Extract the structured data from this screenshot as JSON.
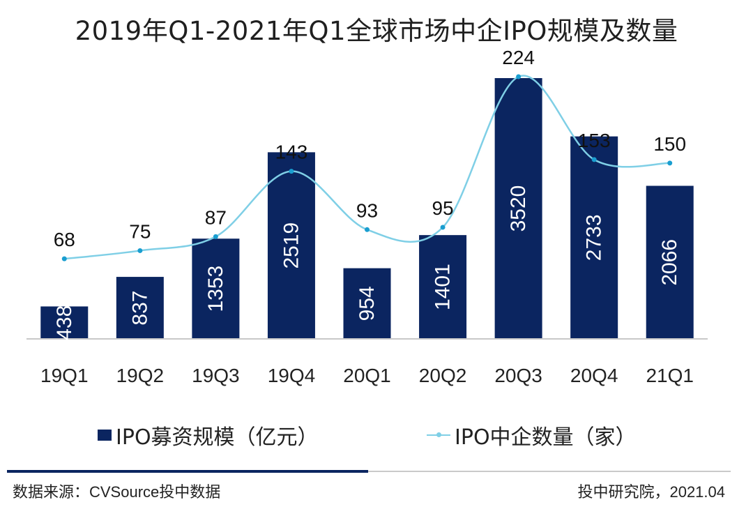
{
  "title": "2019年Q1-2021年Q1全球市场中企IPO规模及数量",
  "legend": {
    "bar_label": "IPO募资规模（亿元）",
    "line_label": "IPO中企数量（家）"
  },
  "footer": {
    "source": "数据来源：CVSource投中数据",
    "publisher": "投中研究院，2021.04"
  },
  "colors": {
    "bar": "#0b2560",
    "line": "#7fcfe6",
    "baseline": "#c8c8c8"
  },
  "chart_data": {
    "type": "bar",
    "categories": [
      "19Q1",
      "19Q2",
      "19Q3",
      "19Q4",
      "20Q1",
      "20Q2",
      "20Q3",
      "20Q4",
      "21Q1"
    ],
    "series": [
      {
        "name": "IPO募资规模（亿元）",
        "type": "bar",
        "axis": "left",
        "values": [
          438,
          837,
          1353,
          2519,
          954,
          1401,
          3520,
          2733,
          2066
        ]
      },
      {
        "name": "IPO中企数量（家）",
        "type": "line",
        "smooth": true,
        "axis": "right",
        "values": [
          68,
          75,
          87,
          143,
          93,
          95,
          224,
          153,
          150
        ]
      }
    ],
    "bar_axis_range": [
      0,
      4000
    ],
    "line_axis_range": [
      0,
      250
    ],
    "data_labels": "bar values inside bars (rotated), line values above points",
    "grid": false,
    "legend_position": "bottom"
  }
}
